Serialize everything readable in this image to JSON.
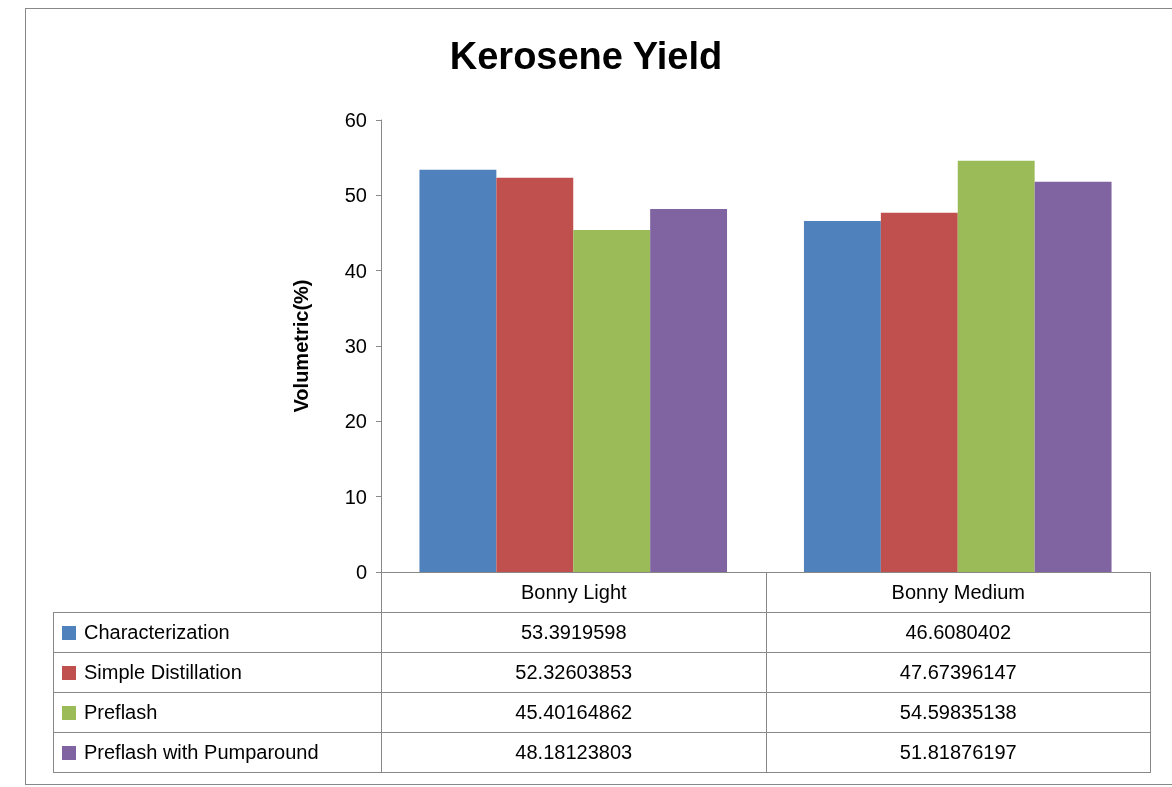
{
  "chart_data": {
    "type": "bar",
    "title": "Kerosene Yield",
    "ylabel": "Volumetric(%)",
    "categories": [
      "Bonny Light",
      "Bonny Medium"
    ],
    "series": [
      {
        "name": "Characterization",
        "color": "#4f81bd",
        "values": [
          53.3919598,
          46.6080402
        ]
      },
      {
        "name": "Simple Distillation",
        "color": "#c0504d",
        "values": [
          52.32603853,
          47.67396147
        ]
      },
      {
        "name": "Preflash",
        "color": "#9bbb59",
        "values": [
          45.40164862,
          54.59835138
        ]
      },
      {
        "name": "Preflash with Pumparound",
        "color": "#8064a2",
        "values": [
          48.18123803,
          51.81876197
        ]
      }
    ],
    "ylim": [
      0,
      60
    ],
    "yticks": [
      0,
      10,
      20,
      30,
      40,
      50,
      60
    ],
    "grid": false,
    "legend": "bottom",
    "data_labels": true
  }
}
